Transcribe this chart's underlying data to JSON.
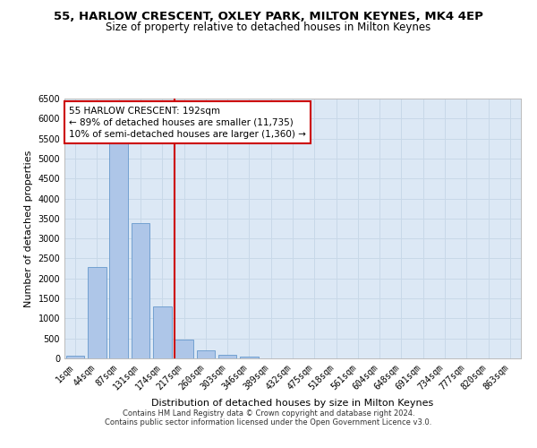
{
  "title_line1": "55, HARLOW CRESCENT, OXLEY PARK, MILTON KEYNES, MK4 4EP",
  "title_line2": "Size of property relative to detached houses in Milton Keynes",
  "xlabel": "Distribution of detached houses by size in Milton Keynes",
  "ylabel": "Number of detached properties",
  "categories": [
    "1sqm",
    "44sqm",
    "87sqm",
    "131sqm",
    "174sqm",
    "217sqm",
    "260sqm",
    "303sqm",
    "346sqm",
    "389sqm",
    "432sqm",
    "475sqm",
    "518sqm",
    "561sqm",
    "604sqm",
    "648sqm",
    "691sqm",
    "734sqm",
    "777sqm",
    "820sqm",
    "863sqm"
  ],
  "bar_values": [
    75,
    2280,
    5400,
    3380,
    1310,
    470,
    210,
    90,
    45,
    0,
    0,
    0,
    0,
    0,
    0,
    0,
    0,
    0,
    0,
    0,
    0
  ],
  "bar_color": "#aec6e8",
  "bar_edge_color": "#6699cc",
  "vline_x": 4.55,
  "vline_color": "#cc0000",
  "annotation_text": "55 HARLOW CRESCENT: 192sqm\n← 89% of detached houses are smaller (11,735)\n10% of semi-detached houses are larger (1,360) →",
  "annotation_box_color": "white",
  "annotation_box_edge": "#cc0000",
  "ylim": [
    0,
    6500
  ],
  "yticks": [
    0,
    500,
    1000,
    1500,
    2000,
    2500,
    3000,
    3500,
    4000,
    4500,
    5000,
    5500,
    6000,
    6500
  ],
  "grid_color": "#c8d8e8",
  "background_color": "#dce8f5",
  "footer_line1": "Contains HM Land Registry data © Crown copyright and database right 2024.",
  "footer_line2": "Contains public sector information licensed under the Open Government Licence v3.0.",
  "title_fontsize": 9.5,
  "subtitle_fontsize": 8.5,
  "axis_label_fontsize": 8,
  "tick_fontsize": 7,
  "footer_fontsize": 6
}
